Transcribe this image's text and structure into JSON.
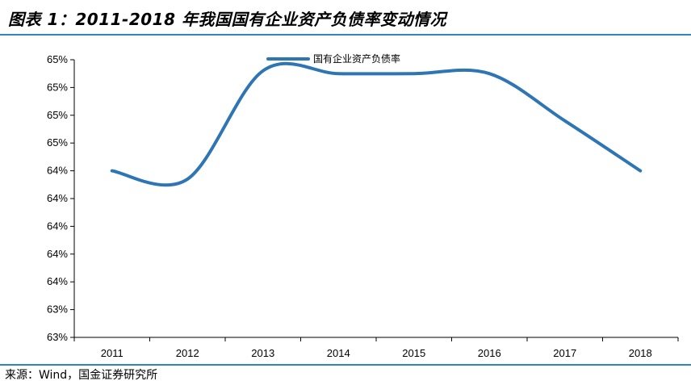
{
  "header": {
    "title": "图表 1：2011-2018 年我国国有企业资产负债率变动情况"
  },
  "footer": {
    "source": "来源：Wind，国金证券研究所"
  },
  "chart_data": {
    "type": "line",
    "title": "",
    "xlabel": "",
    "ylabel": "",
    "categories": [
      "2011",
      "2012",
      "2013",
      "2014",
      "2015",
      "2016",
      "2017",
      "2018"
    ],
    "y_tick_labels": [
      "63%",
      "63%",
      "64%",
      "64%",
      "64%",
      "64%",
      "64%",
      "65%",
      "65%",
      "65%",
      "65%"
    ],
    "ylim": [
      63.0,
      65.0
    ],
    "series": [
      {
        "name": "国有企业资产负债率",
        "values": [
          64.2,
          64.14,
          64.92,
          64.9,
          64.9,
          64.9,
          64.56,
          64.2
        ],
        "color": "#2e75b6"
      }
    ],
    "legend": "top-center",
    "grid": false
  }
}
